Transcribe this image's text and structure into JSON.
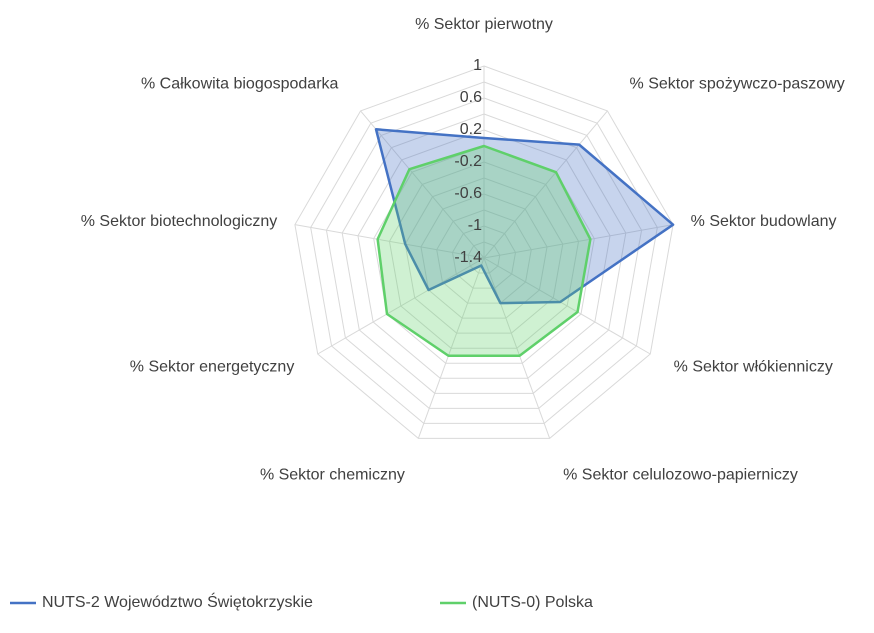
{
  "chart_data": {
    "type": "radar",
    "categories": [
      "% Sektor pierwotny",
      "% Sektor spożywczo-paszowy",
      "% Sektor budowlany",
      "% Sektor włókienniczy",
      "% Sektor celulozowo-papierniczy",
      "% Sektor chemiczny",
      "% Sektor energetyczny",
      "% Sektor biotechnologiczny",
      "% Całkowita biogospodarka"
    ],
    "series": [
      {
        "name": "NUTS-2 Województwo Świętokrzyskie",
        "color": "#4472c4",
        "values": [
          0.1,
          0.45,
          1.0,
          -0.3,
          -0.8,
          -1.3,
          -0.6,
          -0.4,
          0.7
        ]
      },
      {
        "name": "(NUTS-0) Polska",
        "color": "#5fd06a",
        "values": [
          0.0,
          0.0,
          -0.05,
          -0.05,
          -0.1,
          -0.1,
          0.0,
          -0.05,
          0.05
        ]
      }
    ],
    "ylim": [
      -1.4,
      1.0
    ],
    "yticks": [
      -1.4,
      -1.0,
      -0.6,
      -0.2,
      0.2,
      0.6,
      1.0
    ],
    "grid": true,
    "legend": "bottom"
  }
}
